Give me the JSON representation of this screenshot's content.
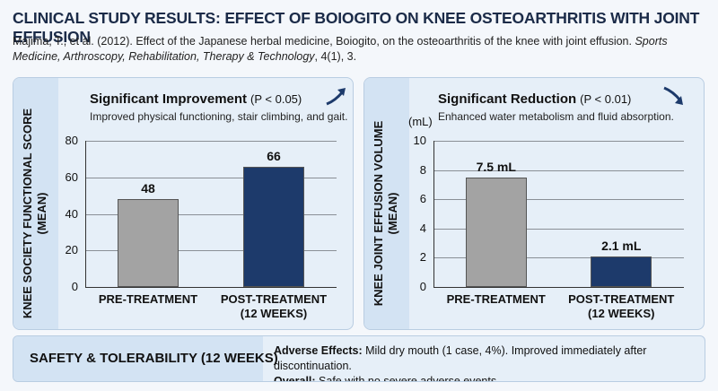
{
  "header": {
    "title": "CLINICAL STUDY RESULTS: EFFECT OF BOIOGITO ON KNEE OSTEOARTHRITIS WITH JOINT EFFUSION",
    "citation": {
      "text": "Majima, T., et al. (2012). Effect of the Japanese herbal medicine, Boiogito, on the osteoarthritis of the knee with joint effusion.",
      "journal": "Sports Medicine, Arthroscopy, Rehabilitation, Therapy & Technology",
      "issue": ", 4(1), 3."
    }
  },
  "chart_data": [
    {
      "type": "bar",
      "title": "Significant Improvement",
      "title_note": "(P < 0.05)",
      "subtitle": "Improved physical functioning, stair climbing, and gait.",
      "y_label": "KNEE SOCIETY FUNCTIONAL SCORE\n(MEAN)",
      "categories": [
        "PRE-TREATMENT",
        "POST-TREATMENT\n(12 WEEKS)"
      ],
      "values": [
        48,
        66
      ],
      "colors": [
        "#a3a3a3",
        "#1d3a6b"
      ],
      "ylim": [
        0,
        80
      ],
      "yticks": [
        0,
        20,
        40,
        60,
        80
      ],
      "grid": true
    },
    {
      "type": "bar",
      "title": "Significant Reduction",
      "title_note": "(P < 0.01)",
      "subtitle": "Enhanced water metabolism and fluid absorption.",
      "y_label": "KNEE JOINT EFFUSION VOLUME\n(MEAN)",
      "y_unit": "(mL)",
      "categories": [
        "PRE-TREATMENT",
        "POST-TREATMENT\n(12 WEEKS)"
      ],
      "values": [
        7.5,
        2.1
      ],
      "value_labels": [
        "7.5 mL",
        "2.1 mL"
      ],
      "colors": [
        "#a3a3a3",
        "#1d3a6b"
      ],
      "ylim": [
        0,
        10
      ],
      "yticks": [
        0,
        2,
        4,
        6,
        8,
        10
      ],
      "grid": true
    }
  ],
  "safety": {
    "title": "SAFETY & TOLERABILITY (12 WEEKS)",
    "lines": [
      {
        "label": "Adverse Effects:",
        "text": "Mild dry mouth (1 case, 4%). Improved immediately after discontinuation."
      },
      {
        "label": "Overall:",
        "text": "Safe with no severe adverse events."
      }
    ]
  }
}
